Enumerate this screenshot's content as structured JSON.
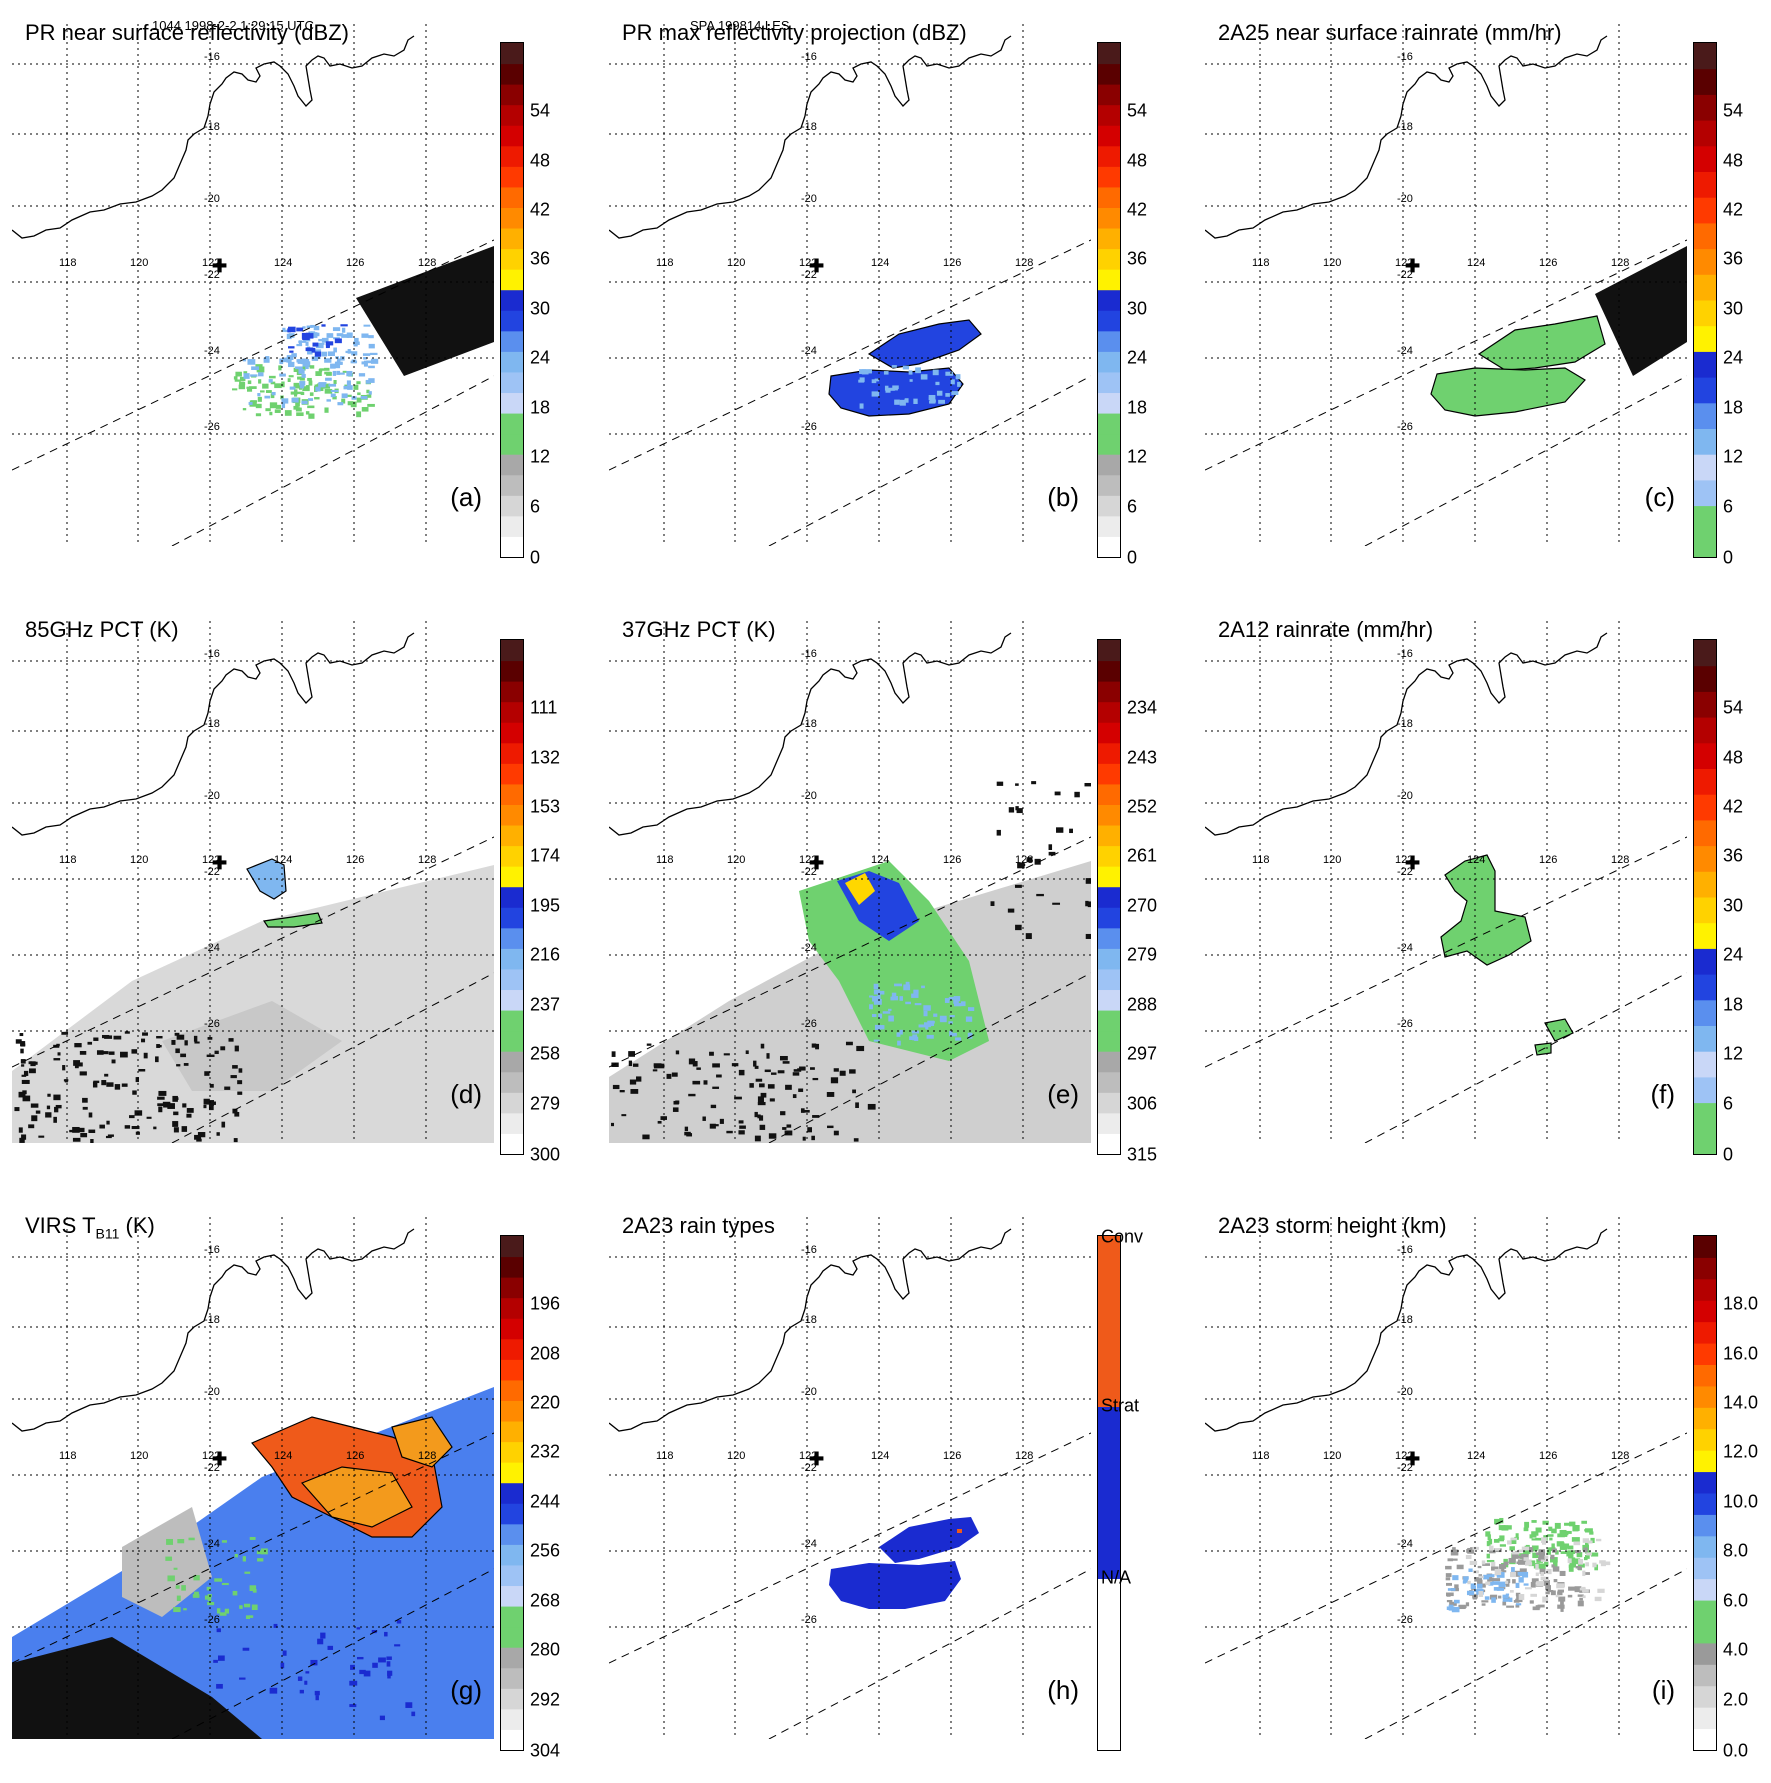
{
  "header": {
    "left": "1044 1998-2-2 1:29:15 UTC",
    "center": "SPA 199814 LES"
  },
  "map": {
    "lon_ticks": [
      "118",
      "120",
      "122",
      "124",
      "126",
      "128"
    ],
    "lat_ticks": [
      "-16",
      "-18",
      "-20",
      "-22",
      "-24",
      "-26"
    ],
    "marker": "✚"
  },
  "colors": {
    "green": "#6fd16f",
    "light_blue": "#7fb7f0",
    "blue": "#2244e0",
    "dark_blue": "#1a2bd0",
    "orange": "#f39a1c",
    "red_orange": "#ef5a1a",
    "black": "#111111",
    "gray": "#b8b8b8"
  },
  "panels": [
    {
      "title": "PR near surface reflectivity (dBZ)",
      "label": "(a)",
      "ticks": [
        "0",
        "6",
        "12",
        "18",
        "24",
        "30",
        "36",
        "42",
        "48",
        "54"
      ],
      "scale": "reflectivity"
    },
    {
      "title": "PR max reflectivity projection (dBZ)",
      "label": "(b)",
      "ticks": [
        "0",
        "6",
        "12",
        "18",
        "24",
        "30",
        "36",
        "42",
        "48",
        "54"
      ],
      "scale": "reflectivity"
    },
    {
      "title": "2A25 near surface rainrate (mm/hr)",
      "label": "(c)",
      "ticks": [
        "0",
        "6",
        "12",
        "18",
        "24",
        "30",
        "36",
        "42",
        "48",
        "54"
      ],
      "scale": "rainrate"
    },
    {
      "title": "85GHz PCT (K)",
      "label": "(d)",
      "ticks": [
        "300",
        "279",
        "258",
        "237",
        "216",
        "195",
        "174",
        "153",
        "132",
        "111"
      ],
      "scale": "reflectivity"
    },
    {
      "title": "37GHz PCT (K)",
      "label": "(e)",
      "ticks": [
        "315",
        "306",
        "297",
        "288",
        "279",
        "270",
        "261",
        "252",
        "243",
        "234"
      ],
      "scale": "reflectivity"
    },
    {
      "title": "2A12 rainrate (mm/hr)",
      "label": "(f)",
      "ticks": [
        "0",
        "6",
        "12",
        "18",
        "24",
        "30",
        "36",
        "42",
        "48",
        "54"
      ],
      "scale": "rainrate"
    },
    {
      "title": "VIRS T",
      "title_sub": "B11",
      "title_tail": " (K)",
      "label": "(g)",
      "ticks": [
        "304",
        "292",
        "280",
        "268",
        "256",
        "244",
        "232",
        "220",
        "208",
        "196"
      ],
      "scale": "reflectivity"
    },
    {
      "title": "2A23 rain types",
      "label": "(h)",
      "ticks": [
        "N/A",
        "Strat",
        "Conv"
      ],
      "scale": "raintype"
    },
    {
      "title": "2A23 storm height (km)",
      "label": "(i)",
      "ticks": [
        "0.0",
        "2.0",
        "4.0",
        "6.0",
        "8.0",
        "10.0",
        "12.0",
        "14.0",
        "16.0",
        "18.0"
      ],
      "scale": "height"
    }
  ]
}
